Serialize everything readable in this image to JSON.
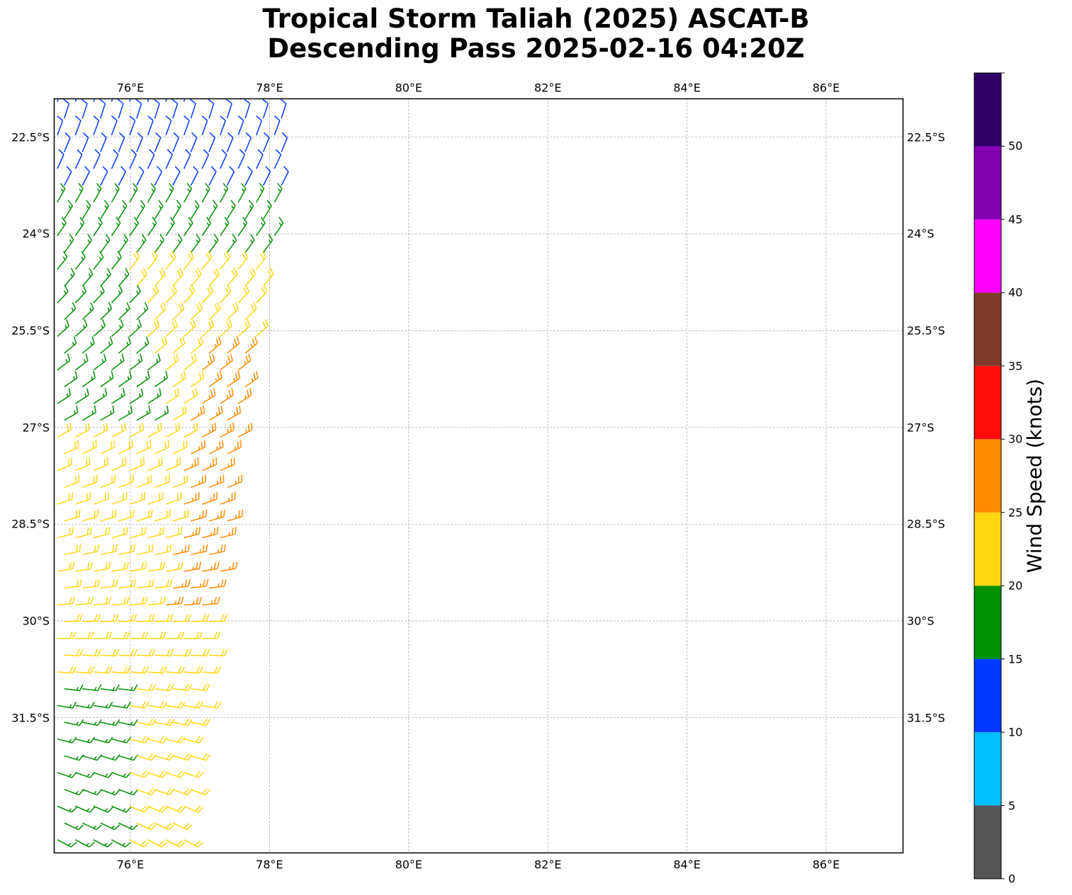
{
  "title": {
    "line1": "Tropical Storm Taliah (2025) ASCAT-B",
    "line2": "Descending Pass 2025-02-16 04:20Z"
  },
  "map": {
    "lon_range": [
      74.9,
      87.1
    ],
    "lat_range": [
      -33.6,
      -21.9
    ],
    "lon_ticks": [
      "76°E",
      "78°E",
      "80°E",
      "82°E",
      "84°E",
      "86°E"
    ],
    "lon_tick_values": [
      76,
      78,
      80,
      82,
      84,
      86
    ],
    "lat_ticks": [
      "22.5°S",
      "24°S",
      "25.5°S",
      "27°S",
      "28.5°S",
      "30°S",
      "31.5°S"
    ],
    "lat_tick_values": [
      -22.5,
      -24,
      -25.5,
      -27,
      -28.5,
      -30,
      -31.5
    ],
    "gridlines": true,
    "gridline_color": "#9e9e9e"
  },
  "colorbar": {
    "label": "Wind Speed (knots)",
    "ticks": [
      "0",
      "5",
      "10",
      "15",
      "20",
      "25",
      "30",
      "35",
      "40",
      "45",
      "50"
    ],
    "bins": [
      {
        "min": 0,
        "max": 5,
        "color": "#545454"
      },
      {
        "min": 5,
        "max": 10,
        "color": "#00bfff"
      },
      {
        "min": 10,
        "max": 15,
        "color": "#0039ff"
      },
      {
        "min": 15,
        "max": 20,
        "color": "#009100"
      },
      {
        "min": 20,
        "max": 25,
        "color": "#ffd710"
      },
      {
        "min": 25,
        "max": 30,
        "color": "#ff8c00"
      },
      {
        "min": 30,
        "max": 35,
        "color": "#ff0d0d"
      },
      {
        "min": 35,
        "max": 40,
        "color": "#7f3b2a"
      },
      {
        "min": 40,
        "max": 45,
        "color": "#ff00ff"
      },
      {
        "min": 45,
        "max": 50,
        "color": "#8100b0"
      },
      {
        "min": 50,
        "max": 55,
        "color": "#2e0063"
      }
    ]
  },
  "wind_field": {
    "swath_west_edge_lon": 74.9,
    "swath_east_edge": [
      {
        "lat": -22.0,
        "lon": 78.4
      },
      {
        "lat": -24.5,
        "lon": 78.0
      },
      {
        "lat": -27.0,
        "lon": 77.6
      },
      {
        "lat": -30.0,
        "lon": 77.2
      },
      {
        "lat": -33.6,
        "lon": 76.8
      }
    ],
    "speed_zones_knots": [
      {
        "region": "north",
        "lat_from": -21.9,
        "lat_to": -23.3,
        "speed": 12
      },
      {
        "region": "north-central",
        "lat_from": -23.3,
        "lat_to": -25.0,
        "speed": 17
      },
      {
        "region": "central-west",
        "lat_from": -25.0,
        "lat_to": -27.0,
        "speed": 18
      },
      {
        "region": "central-east",
        "lat_from": -24.3,
        "lat_to": -27.0,
        "speed": 22
      },
      {
        "region": "eastern core",
        "lat_from": -25.6,
        "lat_to": -29.9,
        "speed": 27
      },
      {
        "region": "south",
        "lat_from": -27.0,
        "lat_to": -33.6,
        "speed": 22
      },
      {
        "region": "southwest corner",
        "lat_from": -31.0,
        "lat_to": -33.6,
        "speed": 17
      }
    ],
    "direction": "barbs oriented mostly southeasterly in the north, turning westerly-southwesterly in the south"
  }
}
